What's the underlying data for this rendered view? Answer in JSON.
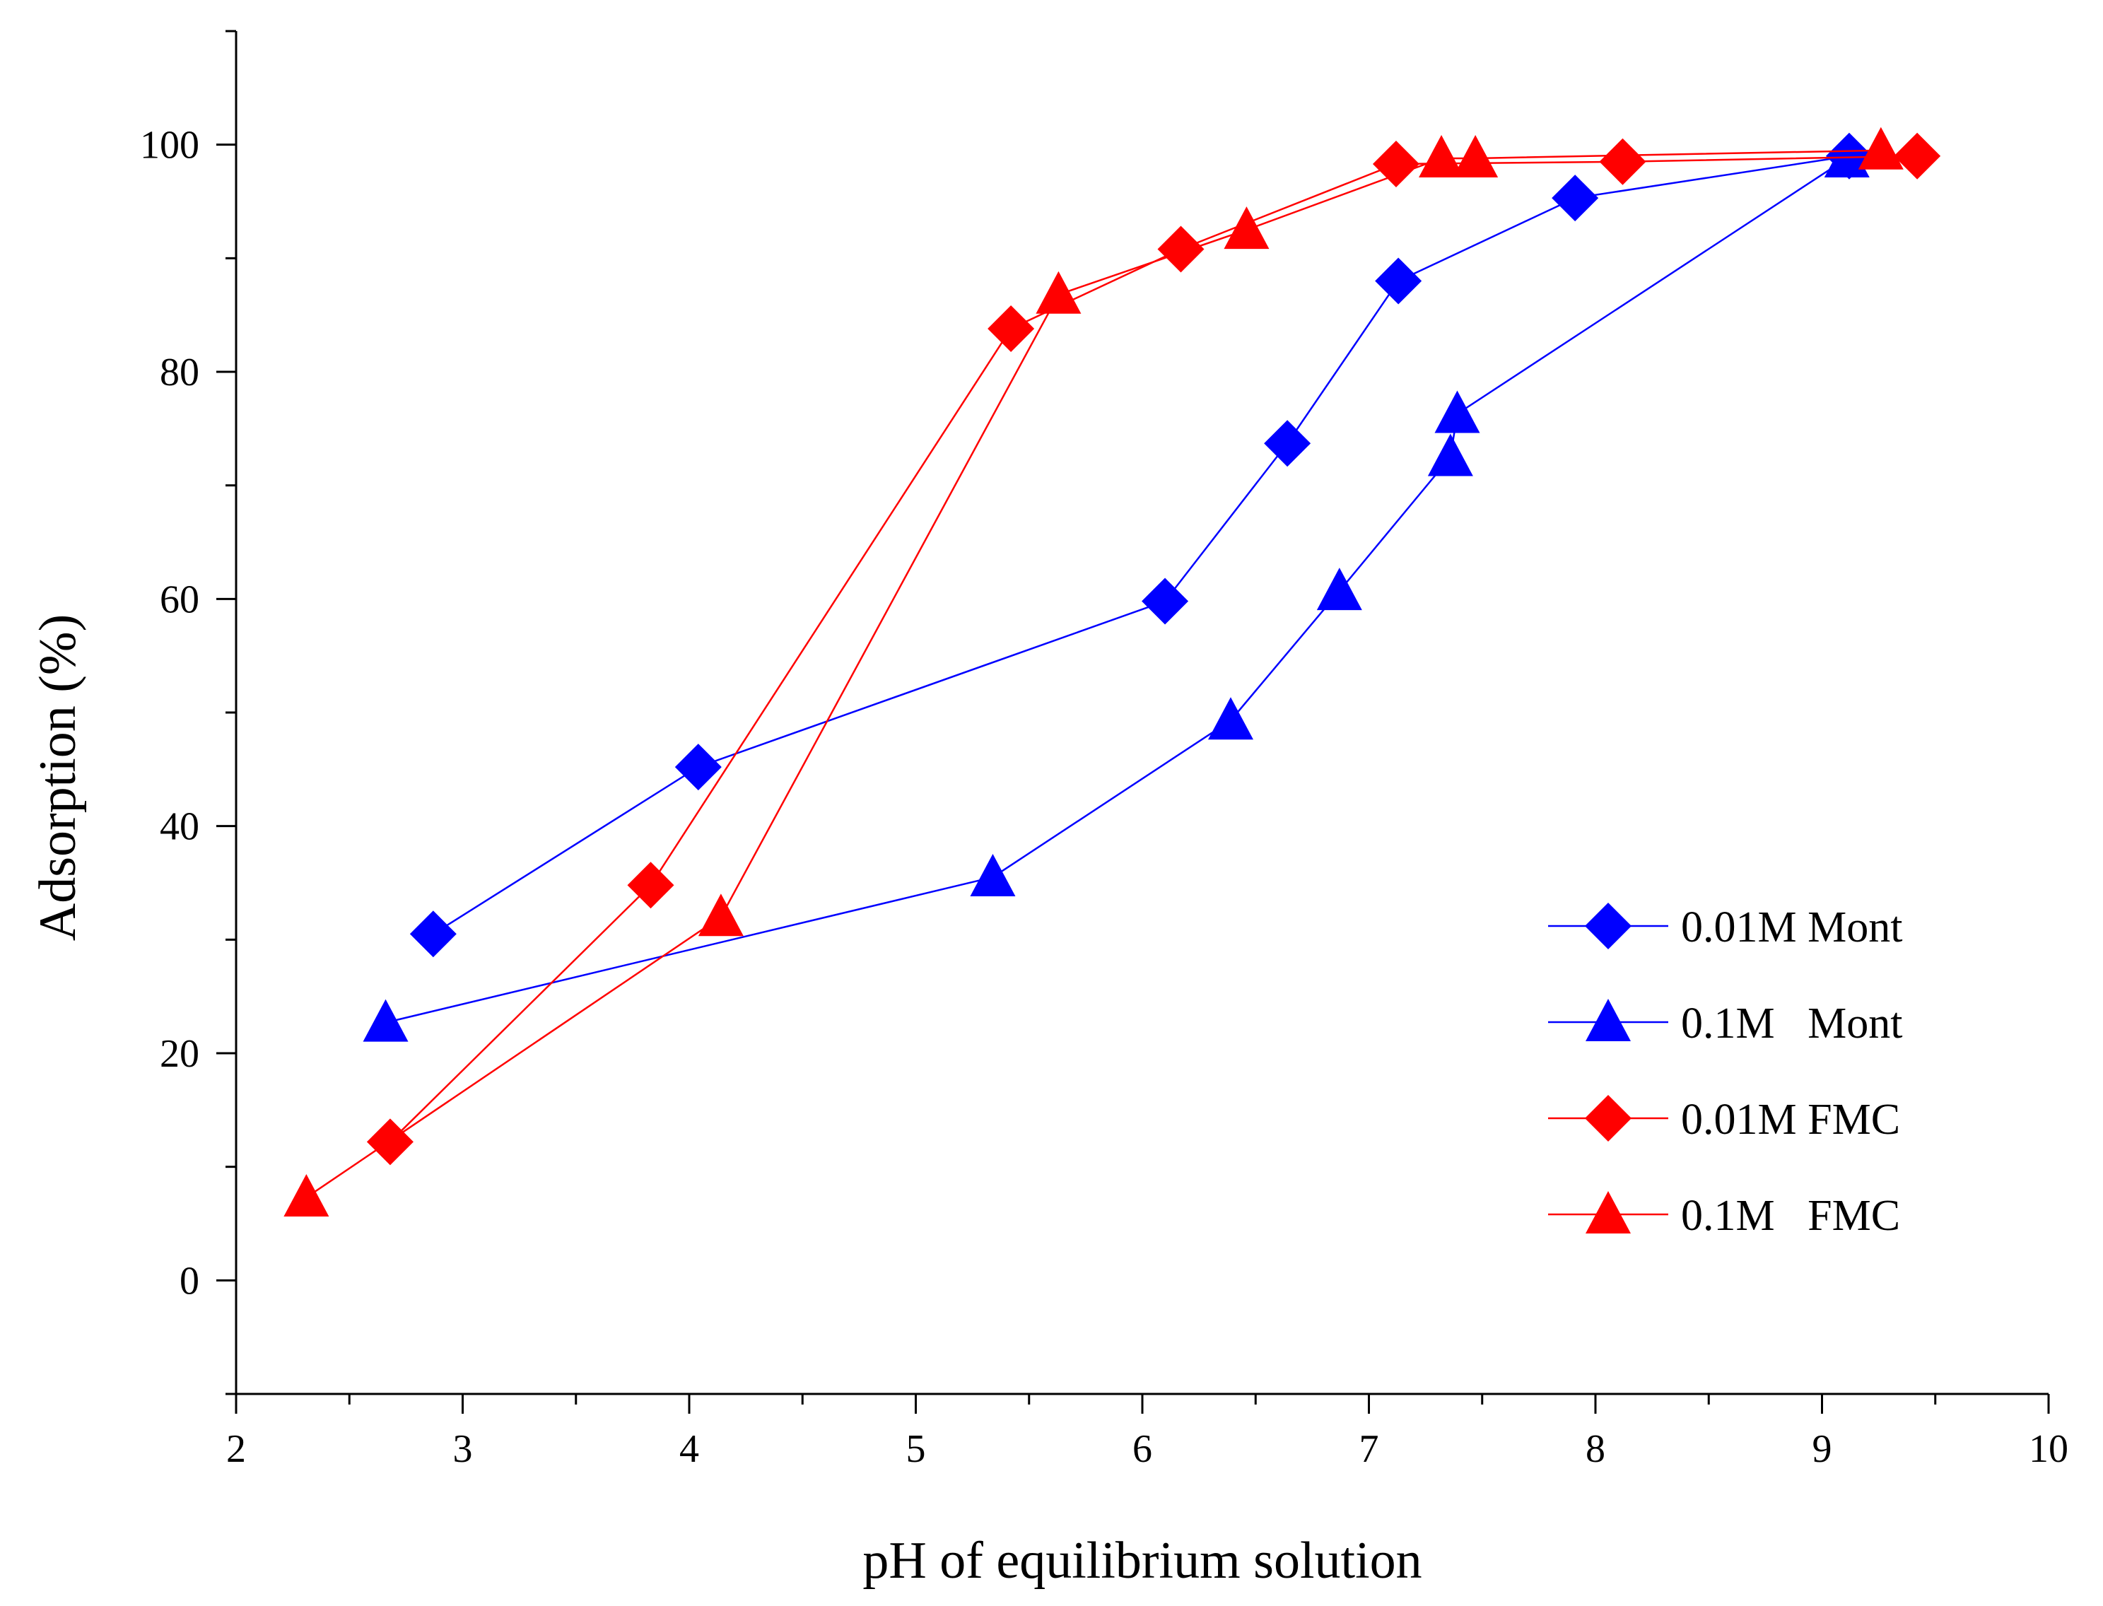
{
  "chart_data": {
    "type": "line",
    "title": "",
    "xlabel": "pH of equilibrium solution",
    "ylabel": "Adsorption (%)",
    "xlim": [
      2,
      10
    ],
    "ylim": [
      -10,
      110
    ],
    "xticks": [
      2,
      3,
      4,
      5,
      6,
      7,
      8,
      9,
      10
    ],
    "yticks": [
      0,
      20,
      40,
      60,
      80,
      100
    ],
    "grid": false,
    "legend_position": "lower-right",
    "series": [
      {
        "name": "0.01M Mont",
        "color": "#0000ff",
        "marker": "diamond",
        "x": [
          2.87,
          4.04,
          6.1,
          6.64,
          7.13,
          7.91,
          9.12
        ],
        "y": [
          30.5,
          45.2,
          59.8,
          73.7,
          88.0,
          95.3,
          99.0
        ]
      },
      {
        "name": "0.1M   Mont",
        "color": "#0000ff",
        "marker": "triangle",
        "x": [
          2.66,
          5.34,
          6.39,
          6.87,
          7.36,
          7.39,
          9.11
        ],
        "y": [
          22.7,
          35.5,
          49.3,
          60.7,
          72.5,
          76.3,
          98.8
        ]
      },
      {
        "name": "0.01M FMC",
        "color": "#ff0000",
        "marker": "diamond",
        "x": [
          2.68,
          3.83,
          5.42,
          6.17,
          7.12,
          8.12,
          9.42
        ],
        "y": [
          12.2,
          34.8,
          83.8,
          90.8,
          98.3,
          98.5,
          99.0
        ]
      },
      {
        "name": "0.1M   FMC",
        "color": "#ff0000",
        "marker": "triangle",
        "x": [
          2.31,
          4.14,
          5.63,
          6.46,
          7.32,
          7.47,
          9.26
        ],
        "y": [
          7.3,
          32.0,
          86.8,
          92.5,
          98.8,
          98.8,
          99.5
        ]
      }
    ]
  }
}
